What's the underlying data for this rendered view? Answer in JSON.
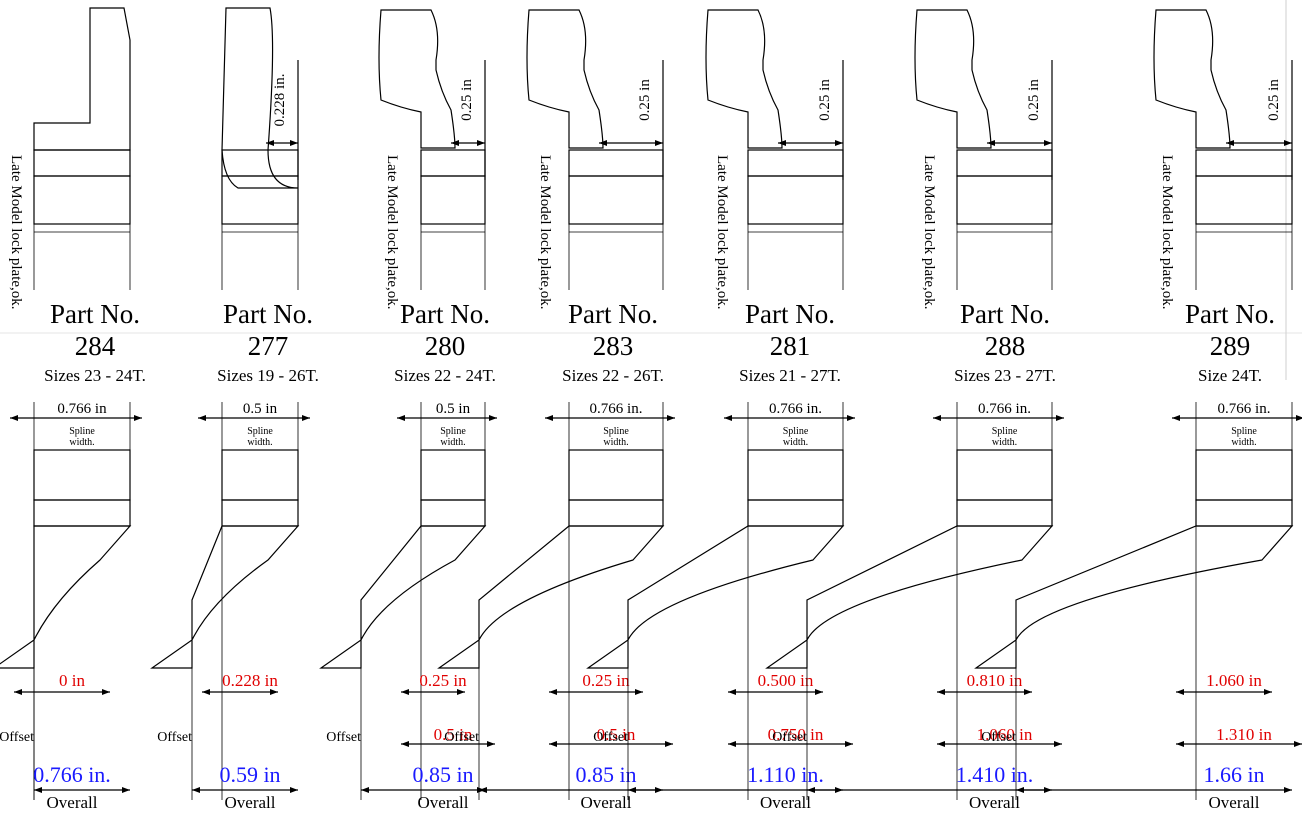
{
  "side_note": "Late Model lock plate,ok.",
  "spline_label_line1": "Spline",
  "spline_label_line2": "width.",
  "offset_word": "Offset",
  "overall_word": "Overall",
  "part_word": "Part No.",
  "parts": [
    {
      "number": "284",
      "sizes": "Sizes 23 - 24T.",
      "spline": "0.766 in",
      "top_dim": "",
      "offset_label": "0 in",
      "offset2": "",
      "overall": "0.766 in."
    },
    {
      "number": "277",
      "sizes": "Sizes 19 - 26T.",
      "spline": "0.5 in",
      "top_dim": "0.228 in.",
      "offset_label": "0.228 in",
      "offset2": "",
      "overall": "0.59 in"
    },
    {
      "number": "280",
      "sizes": "Sizes 22 - 24T.",
      "spline": "0.5 in",
      "top_dim": "0.25 in",
      "offset_label": "0.25 in",
      "offset2": "0.5 in",
      "overall": "0.85 in"
    },
    {
      "number": "283",
      "sizes": "Sizes 22 - 26T.",
      "spline": "0.766 in.",
      "top_dim": "0.25 in",
      "offset_label": "0.25 in",
      "offset2": "0.5 in",
      "overall": "0.85 in"
    },
    {
      "number": "281",
      "sizes": "Sizes 21 - 27T.",
      "spline": "0.766 in.",
      "top_dim": "0.25 in",
      "offset_label": "0.500 in",
      "offset2": "0.750 in",
      "overall": "1.110 in."
    },
    {
      "number": "288",
      "sizes": "Sizes 23 - 27T.",
      "spline": "0.766 in.",
      "top_dim": "0.25 in",
      "offset_label": "0.810 in",
      "offset2": "1.060 in",
      "overall": "1.410 in."
    },
    {
      "number": "289",
      "sizes": "Size 24T.",
      "spline": "0.766 in.",
      "top_dim": "0.25 in",
      "offset_label": "1.060 in",
      "offset2": "1.310 in",
      "overall": "1.66 in"
    }
  ]
}
